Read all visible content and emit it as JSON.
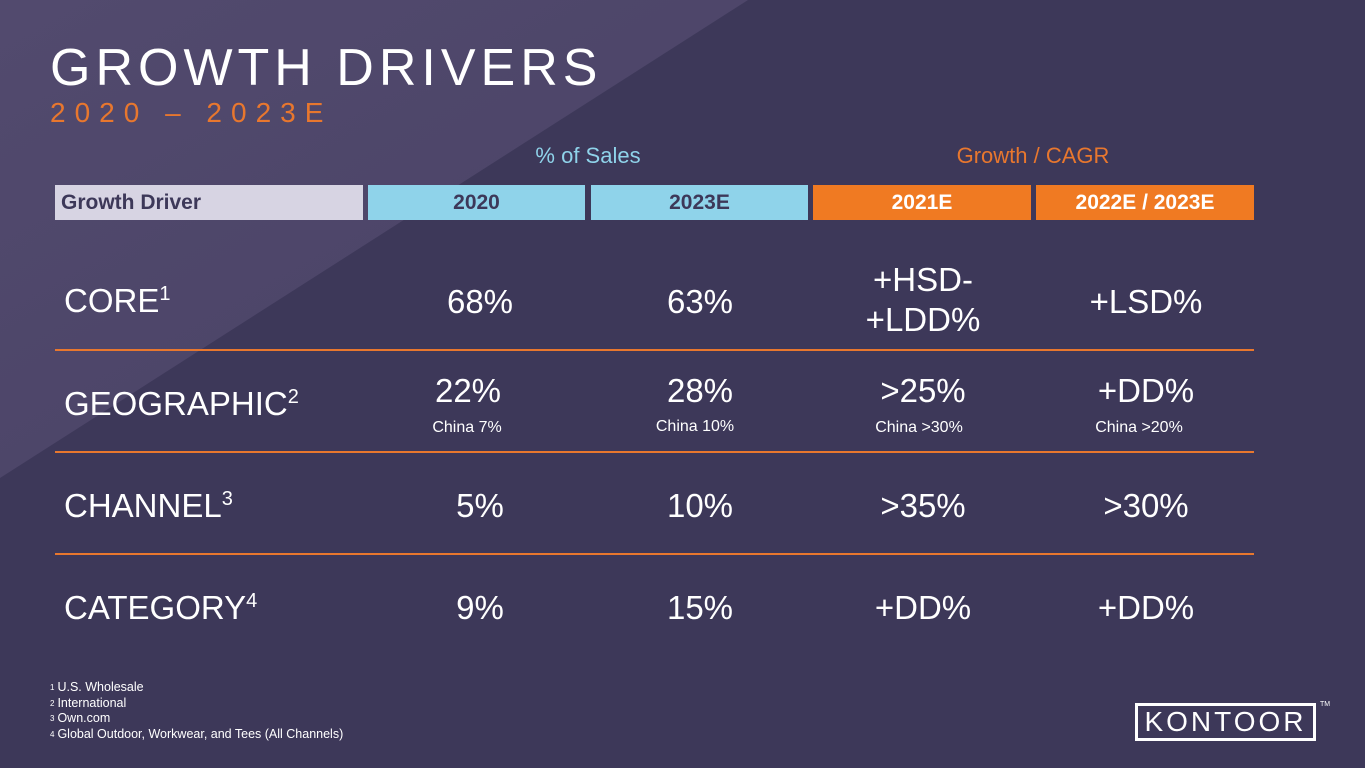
{
  "title": "GROWTH DRIVERS",
  "subtitle": "2020 – 2023E",
  "groups": {
    "sales": "% of Sales",
    "growth": "Growth / CAGR"
  },
  "headers": {
    "driver": "Growth Driver",
    "y2020": "2020",
    "y2023": "2023E",
    "y2021": "2021E",
    "y2022": "2022E / 2023E"
  },
  "rows": [
    {
      "label": "CORE",
      "sup": "1",
      "v2020": "68%",
      "v2023": "63%",
      "v2021": "+HSD-\n+LDD%",
      "v2022": "+LSD%"
    },
    {
      "label": "GEOGRAPHIC",
      "sup": "2",
      "v2020": "22%",
      "v2023": "28%",
      "v2021": ">25%",
      "v2022": "+DD%",
      "sub2020": "China 7%",
      "sub2023": "China 10%",
      "sub2021": "China >30%",
      "sub2022": "China >20%"
    },
    {
      "label": "CHANNEL",
      "sup": "3",
      "v2020": "5%",
      "v2023": "10%",
      "v2021": ">35%",
      "v2022": ">30%"
    },
    {
      "label": "CATEGORY",
      "sup": "4",
      "v2020": "9%",
      "v2023": "15%",
      "v2021": "+DD%",
      "v2022": "+DD%"
    }
  ],
  "footnotes": [
    {
      "num": "1",
      "text": "U.S. Wholesale"
    },
    {
      "num": "2",
      "text": "International"
    },
    {
      "num": "3",
      "text": "Own.com"
    },
    {
      "num": "4",
      "text": "Global Outdoor, Workwear, and Tees (All Channels)"
    }
  ],
  "logo": {
    "text": "KONTOOR",
    "tm": "TM"
  },
  "colors": {
    "background": "#3d3859",
    "orange": "#f07a22",
    "lightblue": "#8fd3ea",
    "lavender": "#d7d4e3"
  }
}
